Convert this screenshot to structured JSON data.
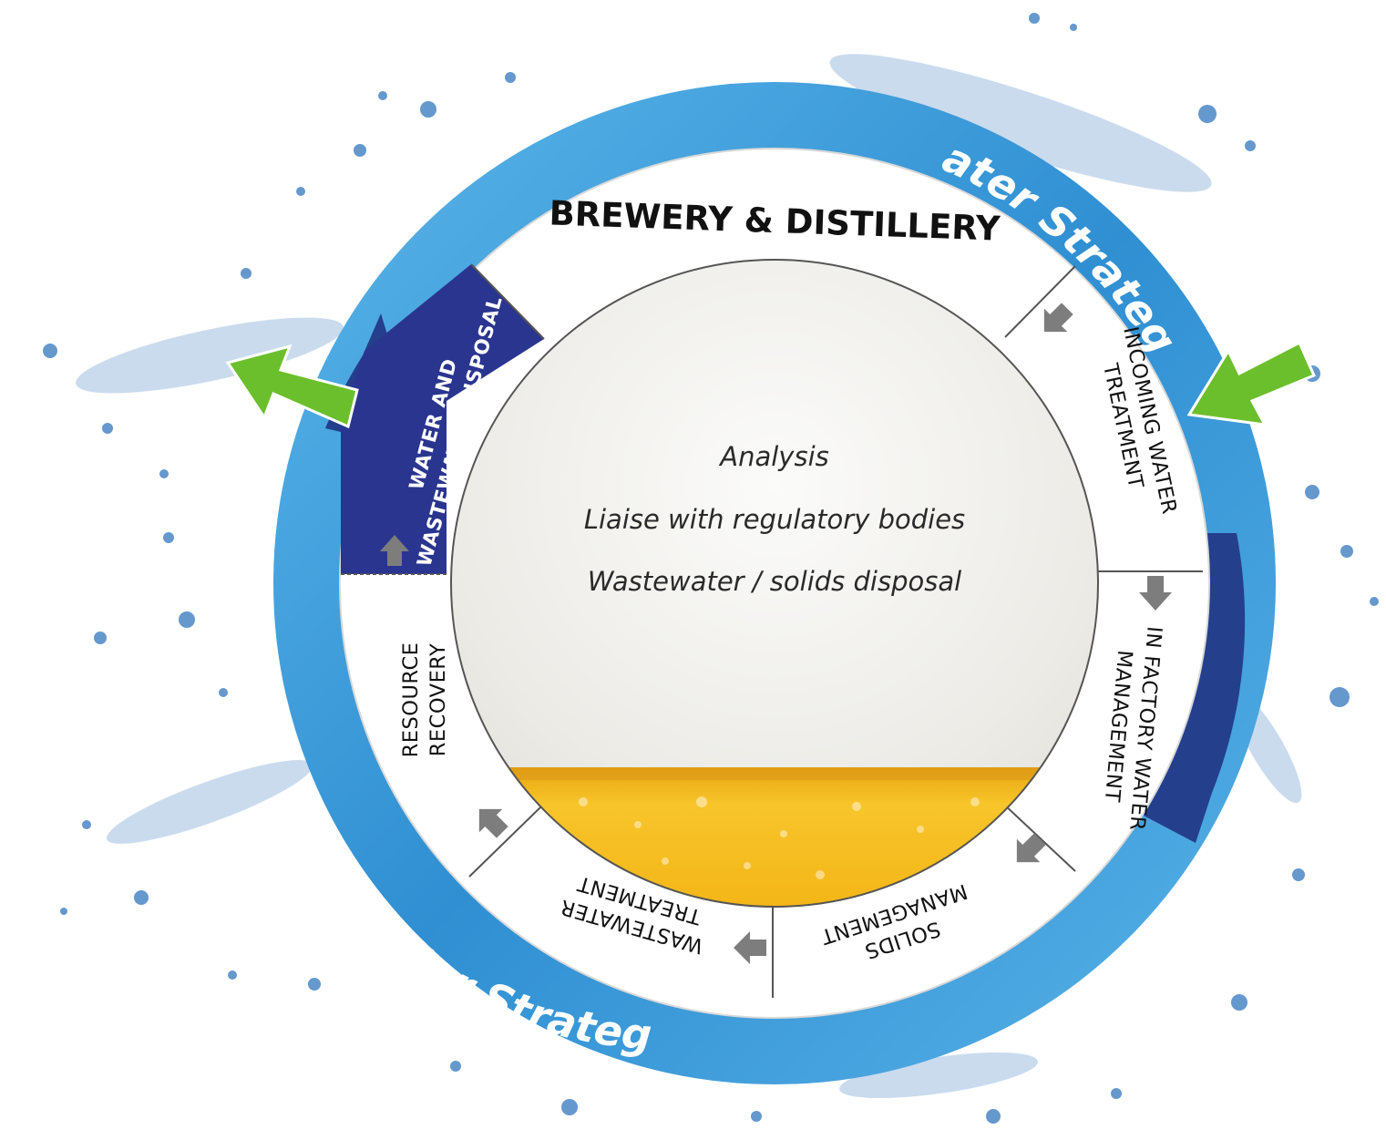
{
  "outer_ring": {
    "label_top": "Water Strategy",
    "label_bottom": "Water Strategy",
    "color": "#3c9ad6",
    "dark_color": "#243f8c"
  },
  "hub": {
    "title": "BREWERY & DISTILLERY"
  },
  "segments": [
    {
      "name": "incoming",
      "lines": [
        "INCOMING WATER",
        "TREATMENT"
      ]
    },
    {
      "name": "in-factory",
      "lines": [
        "IN FACTORY WATER",
        "MANAGEMENT"
      ]
    },
    {
      "name": "solids",
      "lines": [
        "SOLIDS",
        "MANAGEMENT"
      ]
    },
    {
      "name": "wastewater",
      "lines": [
        "WASTEWATER",
        "TREATMENT"
      ]
    },
    {
      "name": "resource",
      "lines": [
        "RESOURCE",
        "RECOVERY"
      ]
    },
    {
      "name": "disposal",
      "lines": [
        "WATER AND",
        "WASTEWATER DISPOSAL"
      ]
    }
  ],
  "center": {
    "lines": [
      "Analysis",
      "Liaise with regulatory bodies",
      "Wastewater / solids disposal"
    ]
  },
  "colors": {
    "highlight_segment": "#2a3590",
    "flow_arrow": "#7d7d7d",
    "green_arrow": "#6cbf2c",
    "foam": "#f1f1ef",
    "beer": "#f2b21a"
  }
}
